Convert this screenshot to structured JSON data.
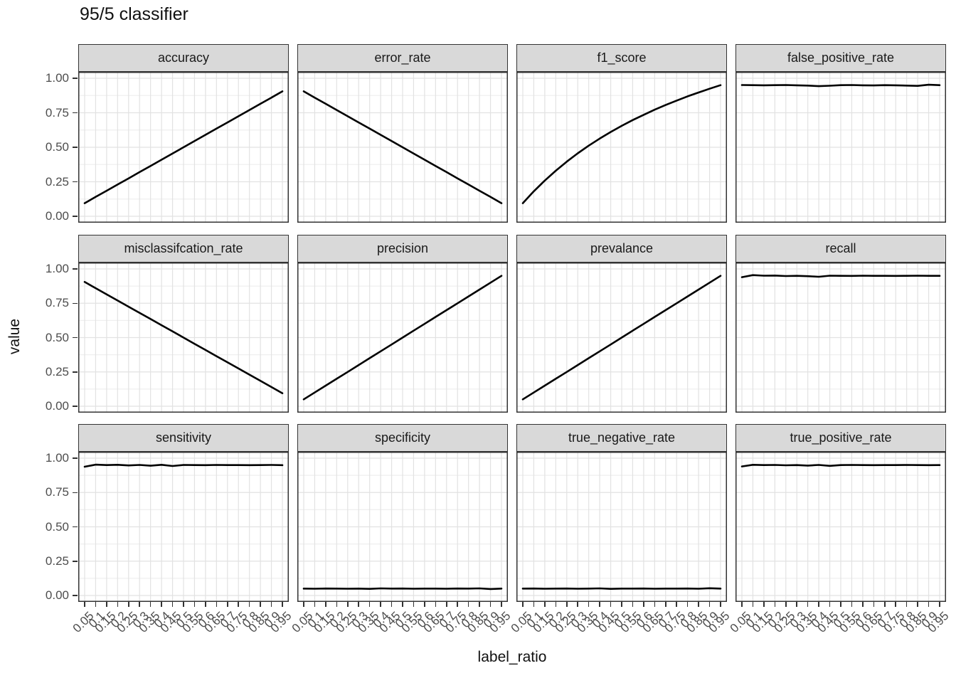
{
  "title": "95/5 classifier",
  "axes": {
    "x_title": "label_ratio",
    "y_title": "value",
    "y_tick_labels": [
      "1.00",
      "0.75",
      "0.50",
      "0.25",
      "0.00"
    ],
    "x_tick_labels": [
      "0.05",
      "0.1",
      "0.15",
      "0.2",
      "0.25",
      "0.3",
      "0.35",
      "0.4",
      "0.45",
      "0.5",
      "0.55",
      "0.6",
      "0.65",
      "0.7",
      "0.75",
      "0.8",
      "0.85",
      "0.9",
      "0.95"
    ]
  },
  "colors": {
    "line": "#000000",
    "grid_major": "#e2e2e2",
    "grid_minor": "#efefef",
    "panel_border": "#333333",
    "panel_bg": "#ffffff",
    "strip_bg": "#d9d9d9",
    "tick": "#333333",
    "text_dark": "#1a1a1a",
    "text_grey": "#4d4d4d"
  },
  "chart_data": {
    "type": "line",
    "title": "95/5 classifier",
    "xlabel": "label_ratio",
    "ylabel": "value",
    "ylim": [
      0,
      1
    ],
    "y_breaks": [
      0,
      0.25,
      0.5,
      0.75,
      1
    ],
    "y_minor_breaks": [
      0.125,
      0.375,
      0.625,
      0.875
    ],
    "grid": "on",
    "legend": "none",
    "facet_layout": {
      "rows": 3,
      "cols": 4
    },
    "x": [
      0.05,
      0.1,
      0.15,
      0.2,
      0.25,
      0.3,
      0.35,
      0.4,
      0.45,
      0.5,
      0.55,
      0.6,
      0.65,
      0.7,
      0.75,
      0.8,
      0.85,
      0.9,
      0.95
    ],
    "facets": [
      {
        "name": "accuracy",
        "values": [
          0.095,
          0.14,
          0.185,
          0.23,
          0.275,
          0.32,
          0.365,
          0.41,
          0.455,
          0.5,
          0.545,
          0.59,
          0.635,
          0.68,
          0.725,
          0.77,
          0.815,
          0.86,
          0.905
        ]
      },
      {
        "name": "error_rate",
        "values": [
          0.905,
          0.86,
          0.815,
          0.77,
          0.725,
          0.68,
          0.635,
          0.59,
          0.545,
          0.5,
          0.455,
          0.41,
          0.365,
          0.32,
          0.275,
          0.23,
          0.185,
          0.14,
          0.095
        ]
      },
      {
        "name": "f1_score",
        "values": [
          0.095,
          0.181,
          0.259,
          0.33,
          0.396,
          0.456,
          0.512,
          0.563,
          0.611,
          0.655,
          0.697,
          0.735,
          0.772,
          0.806,
          0.838,
          0.869,
          0.897,
          0.924,
          0.95
        ]
      },
      {
        "name": "false_positive_rate",
        "values": [
          0.951,
          0.95,
          0.949,
          0.95,
          0.951,
          0.949,
          0.947,
          0.943,
          0.946,
          0.95,
          0.951,
          0.949,
          0.948,
          0.95,
          0.949,
          0.947,
          0.945,
          0.953,
          0.95
        ]
      },
      {
        "name": "misclassifcation_rate",
        "values": [
          0.905,
          0.86,
          0.815,
          0.77,
          0.725,
          0.68,
          0.635,
          0.59,
          0.545,
          0.5,
          0.455,
          0.41,
          0.365,
          0.32,
          0.275,
          0.23,
          0.185,
          0.14,
          0.095
        ]
      },
      {
        "name": "precision",
        "values": [
          0.05,
          0.1,
          0.15,
          0.2,
          0.25,
          0.3,
          0.35,
          0.4,
          0.45,
          0.5,
          0.55,
          0.6,
          0.65,
          0.7,
          0.75,
          0.8,
          0.85,
          0.9,
          0.95
        ]
      },
      {
        "name": "prevalance",
        "values": [
          0.05,
          0.1,
          0.15,
          0.2,
          0.25,
          0.3,
          0.35,
          0.4,
          0.45,
          0.5,
          0.55,
          0.6,
          0.65,
          0.7,
          0.75,
          0.8,
          0.85,
          0.9,
          0.95
        ]
      },
      {
        "name": "recall",
        "values": [
          0.94,
          0.955,
          0.951,
          0.952,
          0.948,
          0.95,
          0.947,
          0.943,
          0.951,
          0.95,
          0.949,
          0.951,
          0.95,
          0.95,
          0.949,
          0.95,
          0.951,
          0.95,
          0.95
        ]
      },
      {
        "name": "sensitivity",
        "values": [
          0.938,
          0.953,
          0.95,
          0.952,
          0.947,
          0.951,
          0.945,
          0.952,
          0.943,
          0.951,
          0.95,
          0.949,
          0.951,
          0.95,
          0.95,
          0.949,
          0.95,
          0.951,
          0.949
        ]
      },
      {
        "name": "specificity",
        "values": [
          0.05,
          0.049,
          0.051,
          0.05,
          0.049,
          0.05,
          0.048,
          0.052,
          0.05,
          0.051,
          0.049,
          0.05,
          0.05,
          0.049,
          0.051,
          0.05,
          0.052,
          0.047,
          0.05
        ]
      },
      {
        "name": "true_negative_rate",
        "values": [
          0.05,
          0.051,
          0.049,
          0.05,
          0.051,
          0.049,
          0.05,
          0.052,
          0.048,
          0.05,
          0.05,
          0.051,
          0.049,
          0.05,
          0.05,
          0.051,
          0.049,
          0.053,
          0.05
        ]
      },
      {
        "name": "true_positive_rate",
        "values": [
          0.94,
          0.952,
          0.95,
          0.951,
          0.948,
          0.95,
          0.946,
          0.951,
          0.944,
          0.95,
          0.951,
          0.95,
          0.949,
          0.95,
          0.95,
          0.951,
          0.95,
          0.949,
          0.95
        ]
      }
    ]
  }
}
